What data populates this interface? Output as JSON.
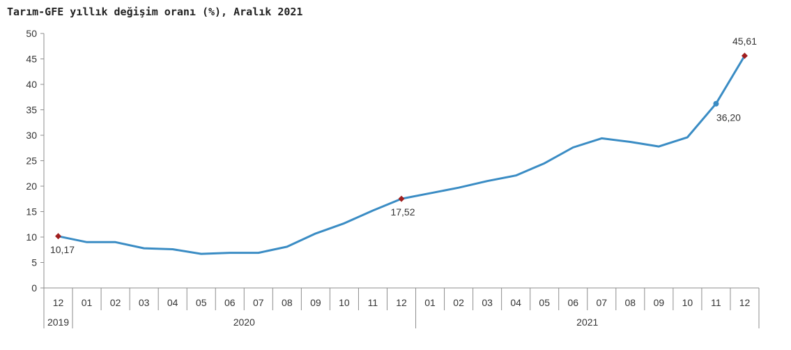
{
  "title": "Tarım-GFE yıllık değişim oranı (%), Aralık 2021",
  "chart_data": {
    "type": "line",
    "title": "Tarım-GFE yıllık değişim oranı (%), Aralık 2021",
    "xlabel": "",
    "ylabel": "",
    "ylim": [
      0,
      50
    ],
    "yticks": [
      "0",
      "5",
      "10",
      "15",
      "20",
      "25",
      "30",
      "35",
      "40",
      "45",
      "50"
    ],
    "categories": [
      "12",
      "01",
      "02",
      "03",
      "04",
      "05",
      "06",
      "07",
      "08",
      "09",
      "10",
      "11",
      "12",
      "01",
      "02",
      "03",
      "04",
      "05",
      "06",
      "07",
      "08",
      "09",
      "10",
      "11",
      "12"
    ],
    "year_groups": [
      {
        "label": "2019",
        "count": 1
      },
      {
        "label": "2020",
        "count": 12
      },
      {
        "label": "2021",
        "count": 12
      }
    ],
    "series": [
      {
        "values": [
          10.17,
          9.0,
          9.0,
          7.8,
          7.6,
          6.7,
          6.9,
          6.9,
          8.1,
          10.7,
          12.7,
          15.2,
          17.52,
          18.6,
          19.7,
          21.0,
          22.1,
          24.5,
          27.6,
          29.4,
          28.7,
          27.8,
          29.6,
          36.2,
          45.61
        ],
        "color": "#3a8cc4"
      }
    ],
    "highlighted": [
      {
        "index": 0,
        "label": "10,17",
        "marker": "diamond",
        "color": "#a01e1e"
      },
      {
        "index": 12,
        "label": "17,52",
        "marker": "diamond",
        "color": "#a01e1e"
      },
      {
        "index": 23,
        "label": "36,20",
        "marker": "circle",
        "color": "#3a8cc4"
      },
      {
        "index": 24,
        "label": "45,61",
        "marker": "diamond",
        "color": "#a01e1e"
      }
    ],
    "grid": false,
    "legend": "none"
  }
}
